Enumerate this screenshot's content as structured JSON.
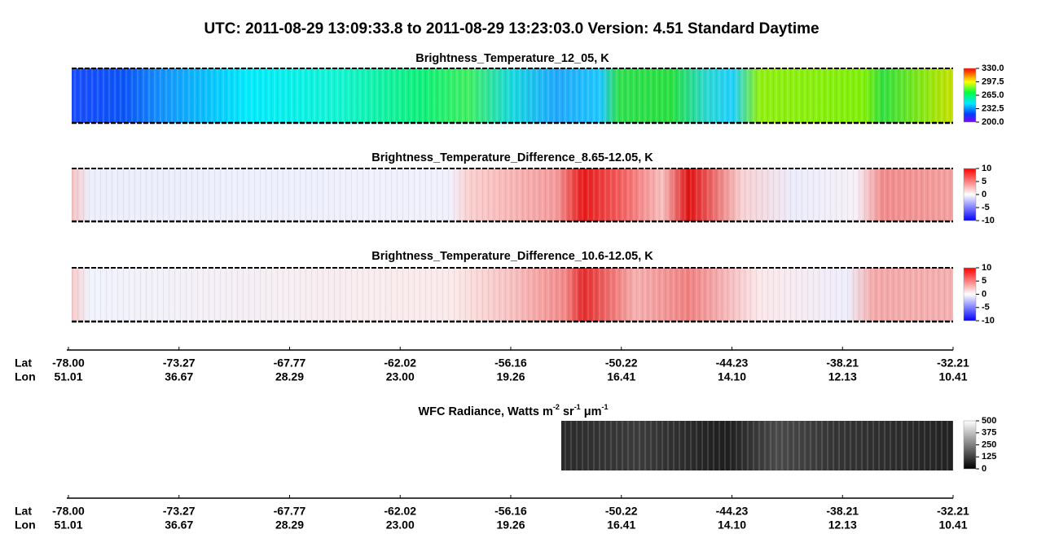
{
  "title": "UTC:  2011-08-29   13:09:33.8  to  2011-08-29   13:23:03.0    Version: 4.51  Standard Daytime",
  "panels": [
    {
      "title": "Brightness_Temperature_12_05, K",
      "colorbar": [
        "330.0",
        "297.5",
        "265.0",
        "232.5",
        "200.0"
      ]
    },
    {
      "title": "Brightness_Temperature_Difference_8.65-12.05, K",
      "colorbar": [
        "10",
        "5",
        "0",
        "-5",
        "-10"
      ]
    },
    {
      "title": "Brightness_Temperature_Difference_10.6-12.05, K",
      "colorbar": [
        "10",
        "5",
        "0",
        "-5",
        "-10"
      ]
    }
  ],
  "axis_labels": {
    "lat": "Lat",
    "lon": "Lon"
  },
  "ticks": [
    {
      "lat": "-78.00",
      "lon": "51.01"
    },
    {
      "lat": "-73.27",
      "lon": "36.67"
    },
    {
      "lat": "-67.77",
      "lon": "28.29"
    },
    {
      "lat": "-62.02",
      "lon": "23.00"
    },
    {
      "lat": "-56.16",
      "lon": "19.26"
    },
    {
      "lat": "-50.22",
      "lon": "16.41"
    },
    {
      "lat": "-44.23",
      "lon": "14.10"
    },
    {
      "lat": "-38.21",
      "lon": "12.13"
    },
    {
      "lat": "-32.21",
      "lon": "10.41"
    }
  ],
  "wfc": {
    "title_parts": [
      "WFC Radiance, Watts m",
      "-2",
      " sr",
      "-1",
      " μm",
      "-1"
    ],
    "colorbar": [
      "500",
      "375",
      "250",
      "125",
      "0"
    ]
  }
}
